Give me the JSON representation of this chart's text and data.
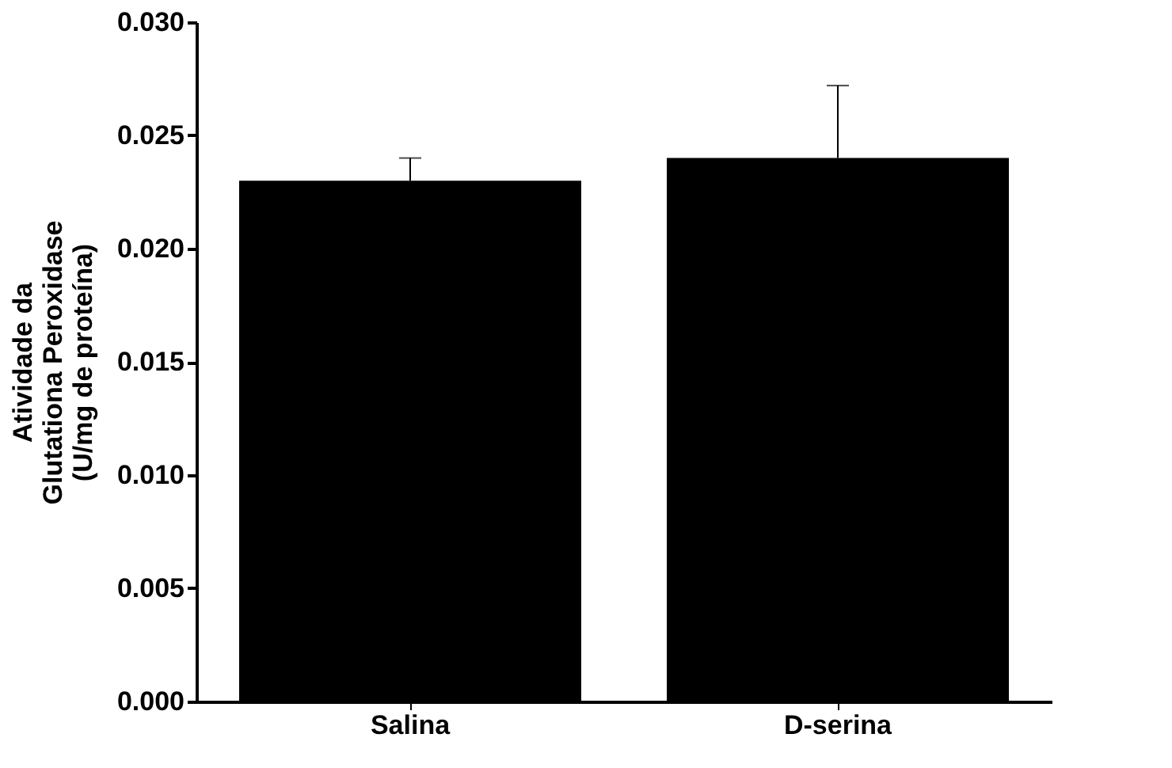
{
  "chart_data": {
    "type": "bar",
    "ylabel": "Atividade da\nGlutationa Peroxidase\n(U/mg de proteína)",
    "categories": [
      "Salina",
      "D-serina"
    ],
    "values": [
      0.023,
      0.024
    ],
    "errors": [
      [
        0.023,
        0.024
      ],
      [
        0.024,
        0.0272
      ]
    ],
    "color": "#000000",
    "ylim": [
      0,
      0.03
    ],
    "yticks": [
      {
        "value": 0,
        "label": "0.000"
      },
      {
        "value": 0.005,
        "label": "0.005"
      },
      {
        "value": 0.01,
        "label": "0.010"
      },
      {
        "value": 0.015,
        "label": "0.015"
      },
      {
        "value": 0.02,
        "label": "0.020"
      },
      {
        "value": 0.025,
        "label": "0.025"
      },
      {
        "value": 0.03,
        "label": "0.030"
      }
    ],
    "grid": false
  }
}
